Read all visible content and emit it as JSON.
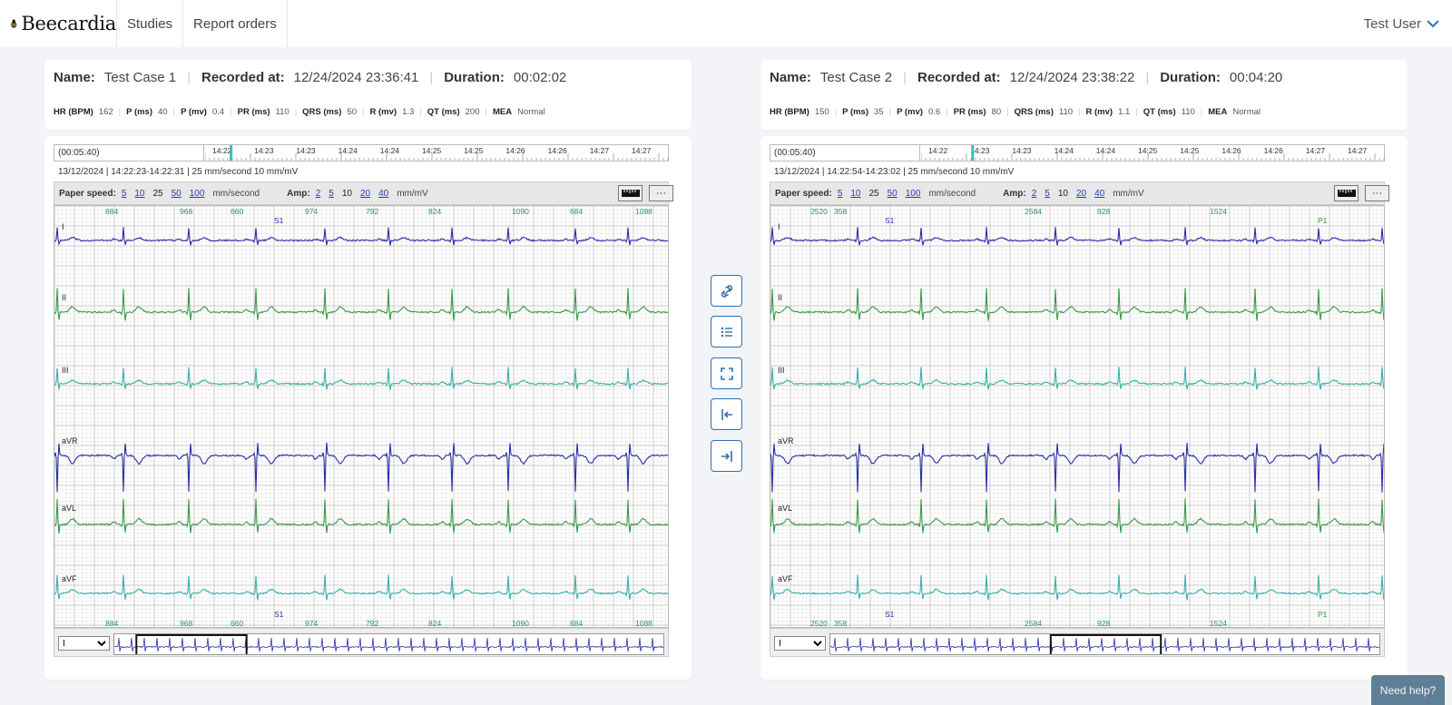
{
  "brand": {
    "name": "Beecardia"
  },
  "nav": {
    "studies": "Studies",
    "report_orders": "Report orders"
  },
  "user": {
    "name": "Test User"
  },
  "help": {
    "label": "Need help?"
  },
  "colors": {
    "lead_dark": "#2a2ea8",
    "lead_green": "#3a9a4a",
    "lead_teal": "#3ab0a8",
    "annotation": "#2a8c80",
    "accent": "#2f6fb0"
  },
  "middle_actions": [
    {
      "icon": "link-icon"
    },
    {
      "icon": "list-icon"
    },
    {
      "icon": "fullscreen-icon"
    },
    {
      "icon": "collapse-left-icon"
    },
    {
      "icon": "expand-right-icon"
    }
  ],
  "studies": [
    {
      "header": {
        "name_label": "Name:",
        "name": "Test Case 1",
        "recorded_label": "Recorded at:",
        "recorded": "12/24/2024 23:36:41",
        "duration_label": "Duration:",
        "duration": "00:02:02"
      },
      "metrics": [
        {
          "label": "HR (BPM)",
          "value": "162"
        },
        {
          "label": "P (ms)",
          "value": "40"
        },
        {
          "label": "P (mv)",
          "value": "0.4"
        },
        {
          "label": "PR (ms)",
          "value": "110"
        },
        {
          "label": "QRS (ms)",
          "value": "50"
        },
        {
          "label": "R (mv)",
          "value": "1.3"
        },
        {
          "label": "QT (ms)",
          "value": "200"
        },
        {
          "label": "MEA",
          "value": "Normal"
        }
      ],
      "timeline": {
        "label": "(00:05:40)",
        "ticks": [
          "14:22",
          "14:23",
          "14:23",
          "14:24",
          "14:24",
          "14:25",
          "14:25",
          "14:26",
          "14:26",
          "14:27",
          "14:27",
          "14:2"
        ],
        "marker": 0.055
      },
      "caption": "13/12/2024 | 14:22:23-14:22:31 | 25 mm/second 10 mm/mV",
      "toolbar": {
        "speed_label": "Paper speed:",
        "speeds": [
          "5",
          "10",
          "25",
          "50",
          "100"
        ],
        "speed_selected": "25",
        "speed_unit": "mm/second",
        "amp_label": "Amp:",
        "amps": [
          "2",
          "5",
          "10",
          "20",
          "40"
        ],
        "amp_selected": "10",
        "amp_unit": "mm/mV",
        "ruler_icon": "ruler-icon",
        "more_label": "···"
      },
      "leads": [
        "I",
        "II",
        "III",
        "aVR",
        "aVL",
        "aVF"
      ],
      "rr_labels": [
        "884",
        "968",
        "660",
        "974",
        "792",
        "824",
        "1090",
        "684",
        "1088"
      ],
      "events": [
        "S1"
      ],
      "lead_select": "I",
      "minimap_window": [
        0.04,
        0.24
      ]
    },
    {
      "header": {
        "name_label": "Name:",
        "name": "Test Case 2",
        "recorded_label": "Recorded at:",
        "recorded": "12/24/2024 23:38:22",
        "duration_label": "Duration:",
        "duration": "00:04:20"
      },
      "metrics": [
        {
          "label": "HR (BPM)",
          "value": "150"
        },
        {
          "label": "P (ms)",
          "value": "35"
        },
        {
          "label": "P (mv)",
          "value": "0.6"
        },
        {
          "label": "PR (ms)",
          "value": "80"
        },
        {
          "label": "QRS (ms)",
          "value": "110"
        },
        {
          "label": "R (mv)",
          "value": "1.1"
        },
        {
          "label": "QT (ms)",
          "value": "110"
        },
        {
          "label": "MEA",
          "value": "Normal"
        }
      ],
      "timeline": {
        "label": "(00:05:40)",
        "ticks": [
          "14:22",
          "14:23",
          "14:23",
          "14:24",
          "14:24",
          "14:25",
          "14:25",
          "14:26",
          "14:26",
          "14:27",
          "14:27",
          "14:2"
        ],
        "marker": 0.11
      },
      "caption": "13/12/2024 | 14:22:54-14:23:02 | 25 mm/second 10 mm/mV",
      "toolbar": {
        "speed_label": "Paper speed:",
        "speeds": [
          "5",
          "10",
          "25",
          "50",
          "100"
        ],
        "speed_selected": "25",
        "speed_unit": "mm/second",
        "amp_label": "Amp:",
        "amps": [
          "2",
          "5",
          "10",
          "20",
          "40"
        ],
        "amp_selected": "10",
        "amp_unit": "mm/mV",
        "ruler_icon": "ruler-icon",
        "more_label": "···"
      },
      "leads": [
        "I",
        "II",
        "III",
        "aVR",
        "aVL",
        "aVF"
      ],
      "rr_labels": [
        "2520",
        "358",
        "2584",
        "928",
        "1524"
      ],
      "events": [
        "S1",
        "P1"
      ],
      "lead_select": "I",
      "minimap_window": [
        0.4,
        0.6
      ]
    }
  ]
}
